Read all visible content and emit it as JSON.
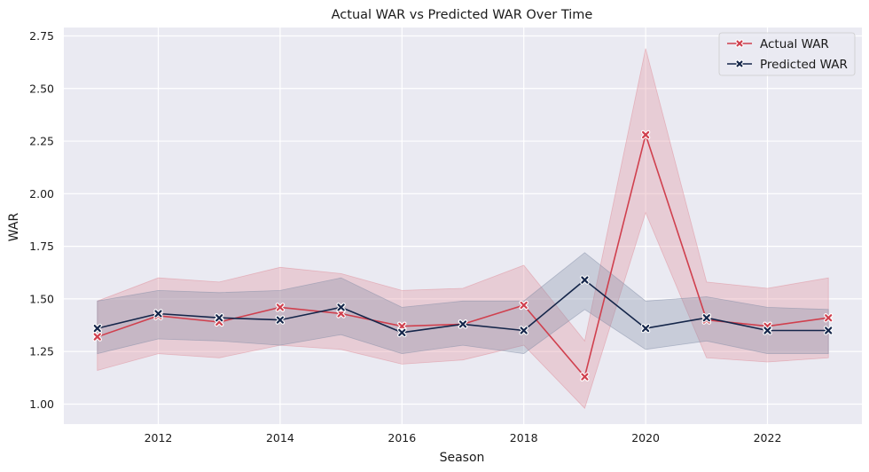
{
  "chart_data": {
    "type": "line",
    "title": "Actual WAR vs Predicted WAR Over Time",
    "xlabel": "Season",
    "ylabel": "WAR",
    "xlim": [
      2010.45,
      2023.55
    ],
    "ylim": [
      0.905,
      2.79
    ],
    "xticks": [
      2012,
      2014,
      2016,
      2018,
      2020,
      2022
    ],
    "yticks": [
      1.0,
      1.25,
      1.5,
      1.75,
      2.0,
      2.25,
      2.5,
      2.75
    ],
    "ytick_labels": [
      "1.00",
      "1.25",
      "1.50",
      "1.75",
      "2.00",
      "2.25",
      "2.50",
      "2.75"
    ],
    "grid": true,
    "legend_position": "top-right",
    "x": [
      2011,
      2012,
      2013,
      2014,
      2015,
      2016,
      2017,
      2018,
      2019,
      2020,
      2021,
      2022,
      2023
    ],
    "series": [
      {
        "name": "Actual WAR",
        "color": "#d0404e",
        "band_color": "#e08c98",
        "marker": "x",
        "values": [
          1.32,
          1.42,
          1.39,
          1.46,
          1.43,
          1.37,
          1.38,
          1.47,
          1.13,
          2.28,
          1.4,
          1.37,
          1.41
        ],
        "ci_lower": [
          1.16,
          1.24,
          1.22,
          1.28,
          1.26,
          1.19,
          1.21,
          1.28,
          0.98,
          1.91,
          1.22,
          1.2,
          1.22
        ],
        "ci_upper": [
          1.49,
          1.6,
          1.58,
          1.65,
          1.62,
          1.54,
          1.55,
          1.66,
          1.3,
          2.69,
          1.58,
          1.55,
          1.6
        ]
      },
      {
        "name": "Predicted WAR",
        "color": "#15264a",
        "band_color": "#7f8ba6",
        "marker": "x",
        "values": [
          1.36,
          1.43,
          1.41,
          1.4,
          1.46,
          1.34,
          1.38,
          1.35,
          1.59,
          1.36,
          1.41,
          1.35,
          1.35
        ],
        "ci_lower": [
          1.24,
          1.31,
          1.3,
          1.28,
          1.33,
          1.24,
          1.28,
          1.24,
          1.45,
          1.26,
          1.3,
          1.24,
          1.24
        ],
        "ci_upper": [
          1.49,
          1.54,
          1.53,
          1.54,
          1.6,
          1.46,
          1.49,
          1.49,
          1.72,
          1.49,
          1.51,
          1.46,
          1.45
        ]
      }
    ]
  }
}
